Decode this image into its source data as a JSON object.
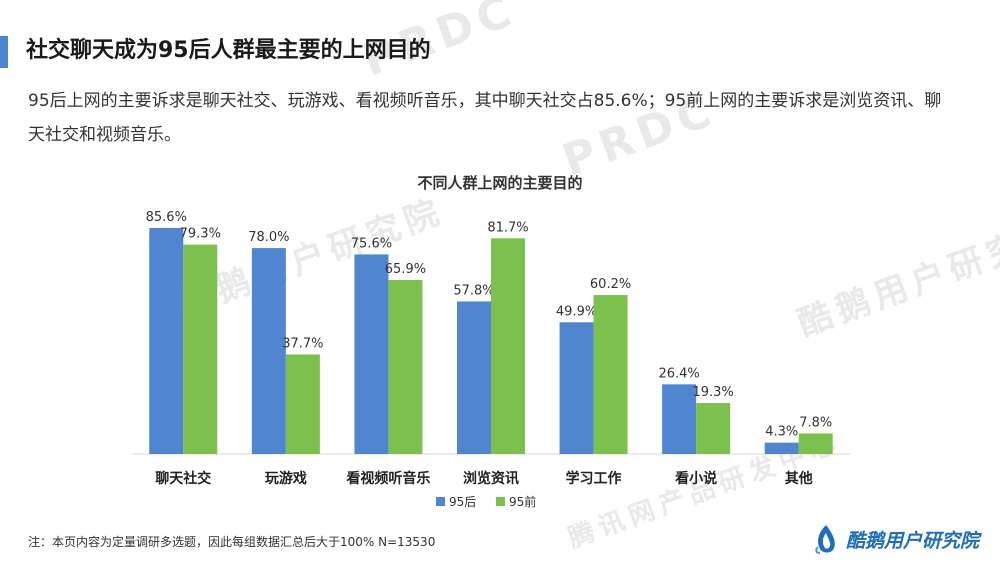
{
  "slide": {
    "title": "社交聊天成为95后人群最主要的上网目的",
    "description": "95后上网的主要诉求是聊天社交、玩游戏、看视频听音乐，其中聊天社交占85.6%；95前上网的主要诉求是浏览资讯、聊天社交和视频音乐。",
    "note": "注：本页内容为定量调研多选题，因此每组数据汇总后大于100%   N=13530",
    "brand": "酷鹅用户研究院",
    "watermarks": [
      "PRDC",
      "酷鹅用户研究院",
      "腾讯网产品研发中心"
    ]
  },
  "colors": {
    "accent": "#4a86d1",
    "series_95hou": "#4f86cf",
    "series_95qian": "#7cc04e",
    "brand": "#1f6fb8"
  },
  "chart_data": {
    "type": "bar",
    "title": "不同人群上网的主要目的",
    "xlabel": "",
    "ylabel": "",
    "ylim": [
      0,
      100
    ],
    "grid": false,
    "legend_position": "bottom",
    "categories": [
      "聊天社交",
      "玩游戏",
      "看视频听音乐",
      "浏览资讯",
      "学习工作",
      "看小说",
      "其他"
    ],
    "series": [
      {
        "name": "95后",
        "values": [
          85.6,
          78.0,
          75.6,
          57.8,
          49.9,
          26.4,
          4.3
        ],
        "labels": [
          "85.6%",
          "78.0%",
          "75.6%",
          "57.8%",
          "49.9%",
          "26.4%",
          "4.3%"
        ]
      },
      {
        "name": "95前",
        "values": [
          79.3,
          37.7,
          65.9,
          81.7,
          60.2,
          19.3,
          7.8
        ],
        "labels": [
          "79.3%",
          "37.7%",
          "65.9%",
          "81.7%",
          "60.2%",
          "19.3%",
          "7.8%"
        ]
      }
    ]
  }
}
